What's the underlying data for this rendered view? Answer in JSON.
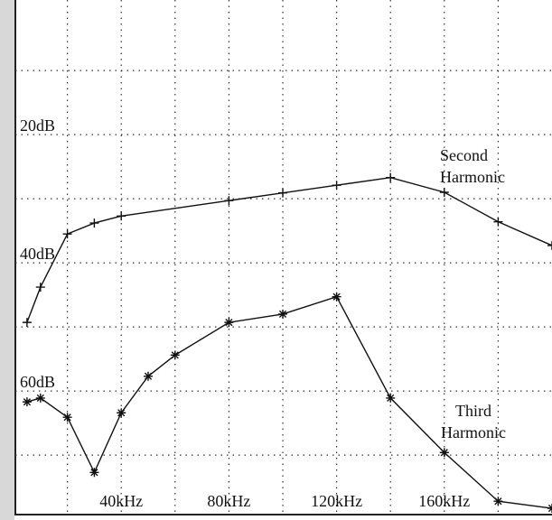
{
  "chart_data": {
    "type": "line",
    "xlim": [
      0,
      200
    ],
    "xticks": [
      20,
      {
        "value": 40,
        "label": "40kHz"
      },
      60,
      {
        "value": 80,
        "label": "80kHz"
      },
      100,
      {
        "value": 120,
        "label": "120kHz"
      },
      140,
      {
        "value": 160,
        "label": "160kHz"
      },
      180
    ],
    "ylim": [
      -1,
      79
    ],
    "yticks": [
      10,
      {
        "value": 20,
        "label": "20dB"
      },
      30,
      {
        "value": 40,
        "label": "40dB"
      },
      50,
      {
        "value": 60,
        "label": "60dB"
      },
      70
    ],
    "y_inverted": true,
    "grid": true,
    "series": [
      {
        "name": "Second Harmonic",
        "color": "#111111",
        "marker": "+",
        "x": [
          5,
          10,
          20,
          30,
          40,
          80,
          100,
          120,
          140,
          160,
          180,
          200
        ],
        "values": [
          49.3,
          43.8,
          35.5,
          33.8,
          32.7,
          30.3,
          29.1,
          27.9,
          26.7,
          29,
          33.6,
          37.3
        ]
      },
      {
        "name": "Third Harmonic",
        "color": "#111111",
        "marker": "*",
        "x": [
          5,
          10,
          20,
          30,
          40,
          50,
          60,
          80,
          100,
          120,
          140,
          160,
          180,
          200
        ],
        "values": [
          61.7,
          61.1,
          64.1,
          72.7,
          63.4,
          57.7,
          54.4,
          49.3,
          48,
          45.3,
          61.1,
          69.6,
          77.2,
          78.3
        ]
      }
    ]
  }
}
